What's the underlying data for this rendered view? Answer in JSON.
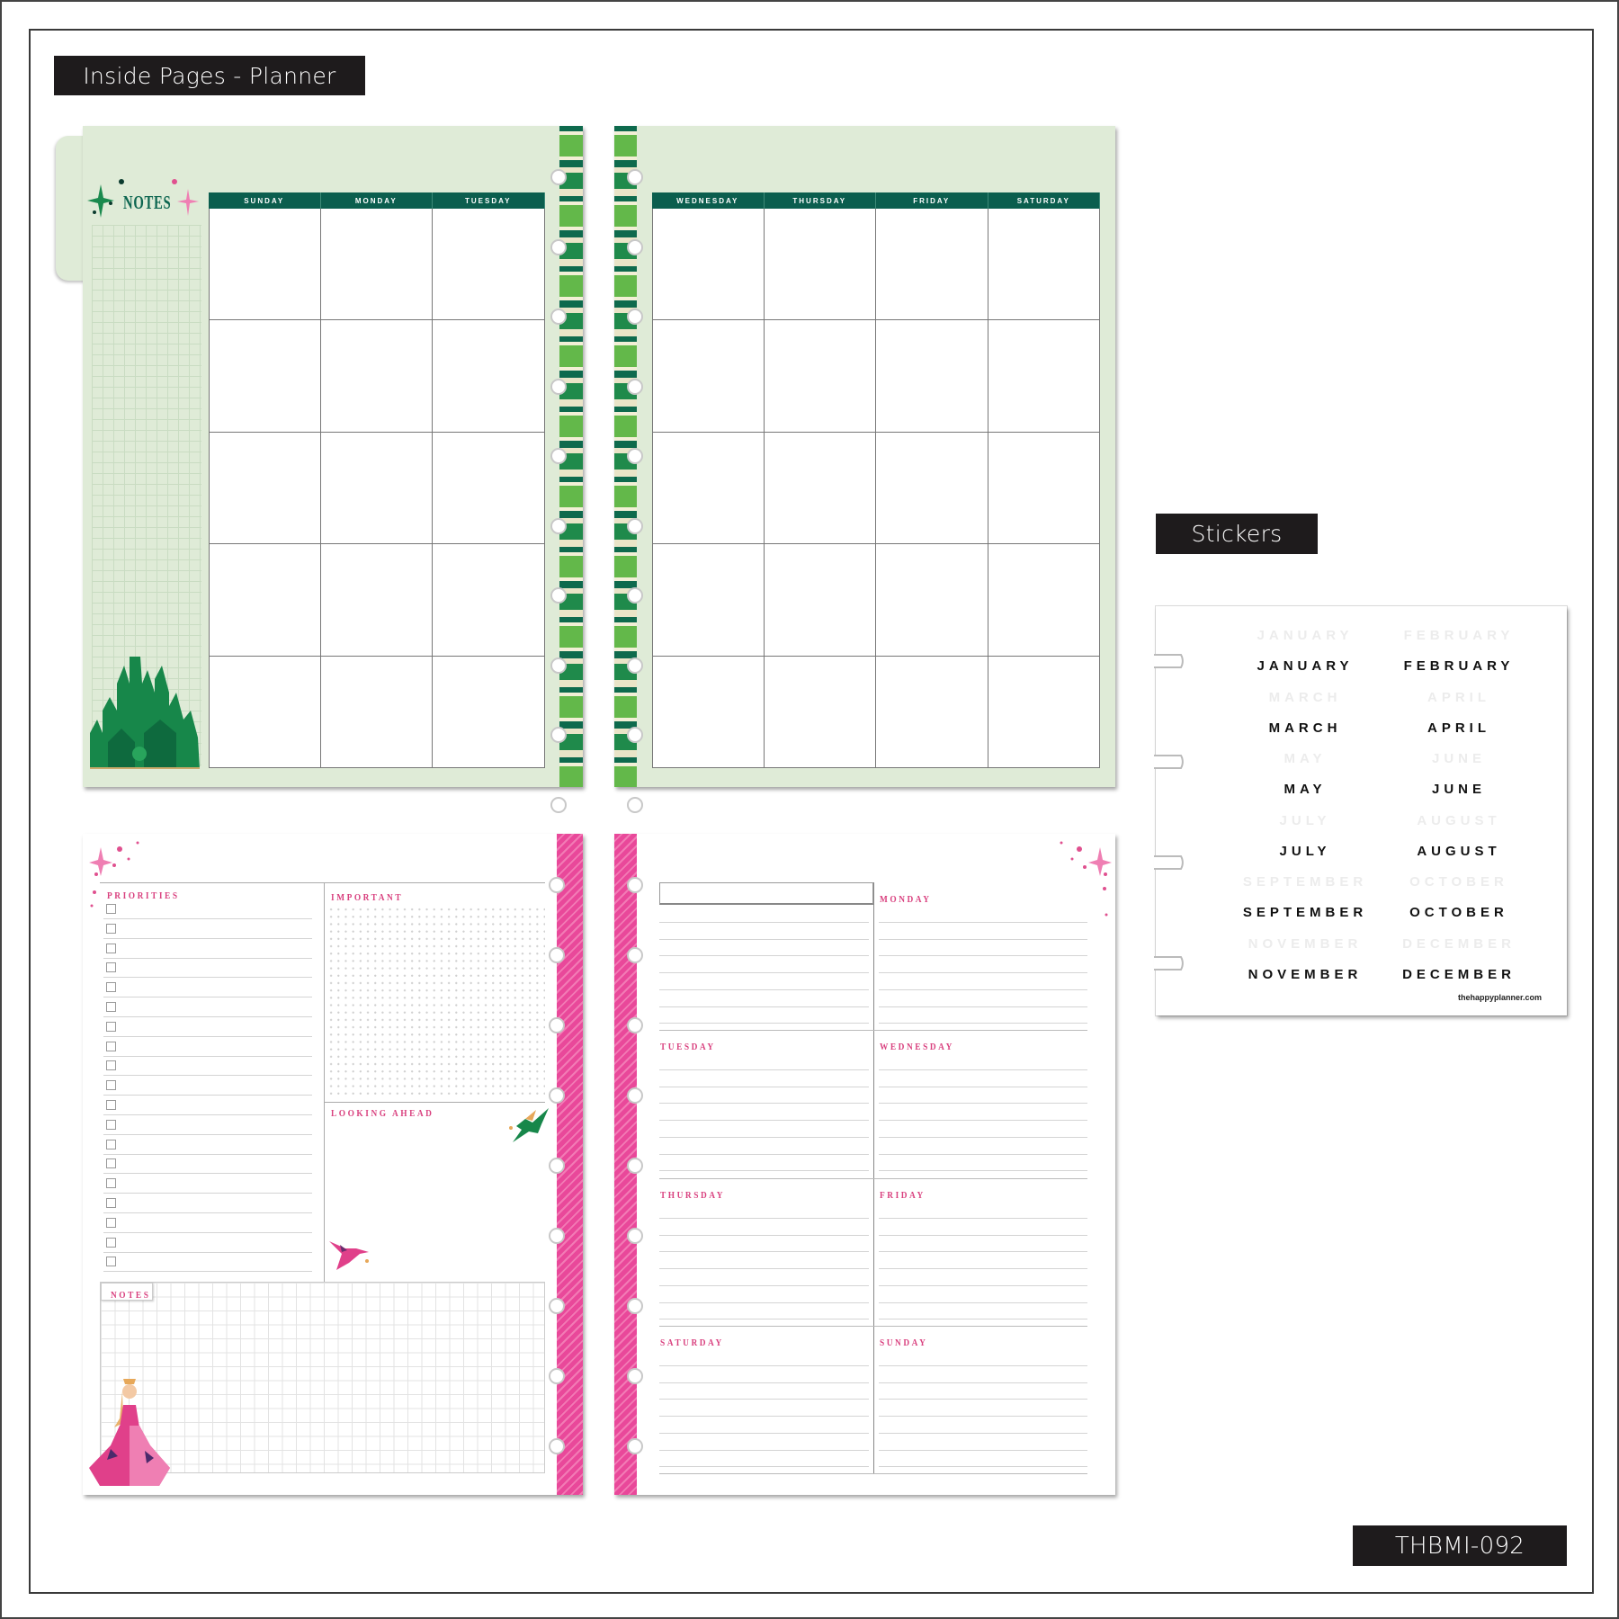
{
  "headers": {
    "inside_pages": "Inside Pages - Planner",
    "stickers": "Stickers",
    "sku": "THBMI-092"
  },
  "monthly_spread": {
    "notes_label": "NOTES",
    "left_days": [
      "SUNDAY",
      "MONDAY",
      "TUESDAY"
    ],
    "right_days": [
      "WEDNESDAY",
      "THURSDAY",
      "FRIDAY",
      "SATURDAY"
    ],
    "rows": 5,
    "colors": {
      "page": "#dfebd7",
      "header": "#0b5e4e",
      "accent": "#0d6650"
    }
  },
  "weekly_spread": {
    "priorities_label": "PRIORITIES",
    "priority_checkbox_count": 19,
    "important_label": "IMPORTANT",
    "looking_ahead_label": "LOOKING AHEAD",
    "notes_label": "NOTES",
    "days": [
      "MONDAY",
      "TUESDAY",
      "WEDNESDAY",
      "THURSDAY",
      "FRIDAY",
      "SATURDAY",
      "SUNDAY"
    ],
    "colors": {
      "accent": "#d9417f",
      "spine": "#e9489a"
    }
  },
  "stickers": {
    "months": [
      [
        "JANUARY",
        "FEBRUARY"
      ],
      [
        "MARCH",
        "APRIL"
      ],
      [
        "MAY",
        "JUNE"
      ],
      [
        "JULY",
        "AUGUST"
      ],
      [
        "SEPTEMBER",
        "OCTOBER"
      ],
      [
        "NOVEMBER",
        "DECEMBER"
      ]
    ],
    "footer": "thehappyplanner.com"
  }
}
